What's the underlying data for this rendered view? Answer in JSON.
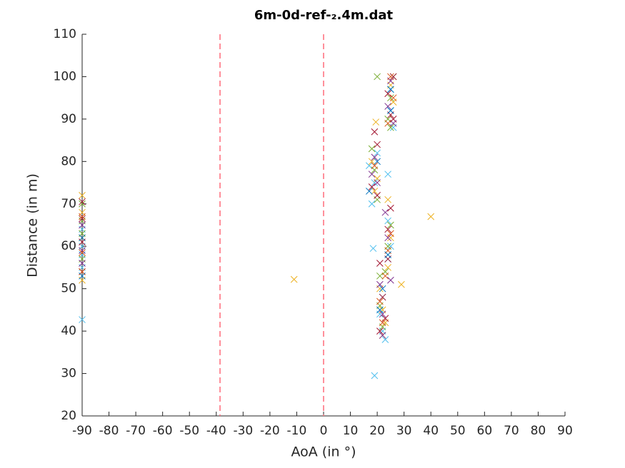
{
  "chart_data": {
    "type": "scatter",
    "title": "6m-0d-ref-₂.4m.dat",
    "xlabel": "AoA (in °)",
    "ylabel": "Distance (in m)",
    "xlim": [
      -90,
      90
    ],
    "ylim": [
      20,
      110
    ],
    "xticks": [
      -90,
      -80,
      -70,
      -60,
      -50,
      -40,
      -30,
      -20,
      -10,
      0,
      10,
      20,
      30,
      40,
      50,
      60,
      70,
      80,
      90
    ],
    "yticks": [
      20,
      30,
      40,
      50,
      60,
      70,
      80,
      90,
      100,
      110
    ],
    "grid": false,
    "marker": "x",
    "vlines": [
      -38.6,
      0
    ],
    "vline_color": "#ff6b7a",
    "series": [
      {
        "color": "#4DBEEE",
        "x": [
          -90,
          -90,
          -90,
          -90,
          18,
          19,
          17,
          20,
          22,
          21,
          22,
          23,
          24,
          25,
          24,
          25,
          26,
          25,
          19,
          18.5,
          24,
          -90
        ],
        "y": [
          42.7,
          55,
          60,
          64,
          70,
          75,
          79,
          82,
          40,
          44,
          48,
          38,
          57,
          60,
          66,
          92,
          88,
          97,
          29.5,
          59.5,
          77,
          58
        ]
      },
      {
        "color": "#EDB120",
        "x": [
          -90,
          -90,
          -90,
          -11,
          40,
          29,
          19.5,
          18,
          20,
          19,
          21,
          22,
          23,
          22,
          24,
          25,
          24,
          26,
          25,
          -90
        ],
        "y": [
          72,
          68,
          52,
          52.2,
          67,
          51,
          89.3,
          80,
          76,
          73,
          50,
          45,
          42,
          39,
          55,
          62,
          71,
          94,
          98,
          62
        ]
      },
      {
        "color": "#77AC30",
        "x": [
          -90,
          -90,
          -90,
          20,
          18,
          19,
          20,
          21,
          22,
          21,
          23,
          24,
          25,
          24,
          25,
          26,
          25,
          -90
        ],
        "y": [
          70,
          63,
          57,
          100,
          83,
          78,
          71,
          46,
          41,
          53,
          54,
          60,
          65,
          90,
          95,
          100,
          88,
          66
        ]
      },
      {
        "color": "#A2142F",
        "x": [
          -90,
          -90,
          -90,
          19,
          20,
          18,
          20,
          21,
          22,
          21,
          23,
          24,
          25,
          24,
          26,
          25,
          24,
          26,
          -90
        ],
        "y": [
          70.5,
          61,
          54,
          87,
          84,
          74,
          72,
          56,
          48,
          40,
          43,
          64,
          69,
          57,
          100,
          91,
          96,
          90,
          66.5
        ]
      },
      {
        "color": "#7E2F8E",
        "x": [
          -90,
          -90,
          18,
          19,
          20,
          21,
          22,
          22,
          24,
          25,
          23,
          25,
          24,
          26,
          -90
        ],
        "y": [
          65,
          59,
          77,
          81,
          75,
          51,
          44,
          39,
          62,
          52,
          68,
          99,
          93,
          89,
          56
        ]
      },
      {
        "color": "#D95319",
        "x": [
          -90,
          -90,
          19,
          21,
          22,
          23,
          24,
          25,
          26,
          25,
          24,
          -90
        ],
        "y": [
          67,
          58.5,
          79,
          47,
          42,
          53,
          59,
          63,
          95,
          100,
          89,
          54
        ]
      },
      {
        "color": "#0072BD",
        "x": [
          -90,
          17,
          20,
          21,
          22,
          24,
          25,
          25,
          -90
        ],
        "y": [
          62,
          73,
          80,
          45,
          50,
          58,
          97,
          92,
          53
        ]
      }
    ]
  }
}
